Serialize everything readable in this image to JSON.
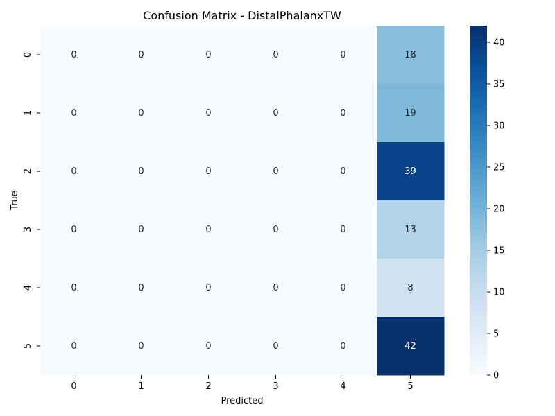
{
  "chart_data": {
    "type": "heatmap",
    "title": "Confusion Matrix - DistalPhalanxTW",
    "xlabel": "Predicted",
    "ylabel": "True",
    "x_categories": [
      "0",
      "1",
      "2",
      "3",
      "4",
      "5"
    ],
    "y_categories": [
      "0",
      "1",
      "2",
      "3",
      "4",
      "5"
    ],
    "values": [
      [
        0,
        0,
        0,
        0,
        0,
        18
      ],
      [
        0,
        0,
        0,
        0,
        0,
        19
      ],
      [
        0,
        0,
        0,
        0,
        0,
        39
      ],
      [
        0,
        0,
        0,
        0,
        0,
        13
      ],
      [
        0,
        0,
        0,
        0,
        0,
        8
      ],
      [
        0,
        0,
        0,
        0,
        0,
        42
      ]
    ],
    "colorbar": {
      "colormap": "Blues",
      "min": 0,
      "max": 42,
      "ticks": [
        "0",
        "5",
        "10",
        "15",
        "20",
        "25",
        "30",
        "35",
        "40"
      ]
    },
    "grid": false
  }
}
